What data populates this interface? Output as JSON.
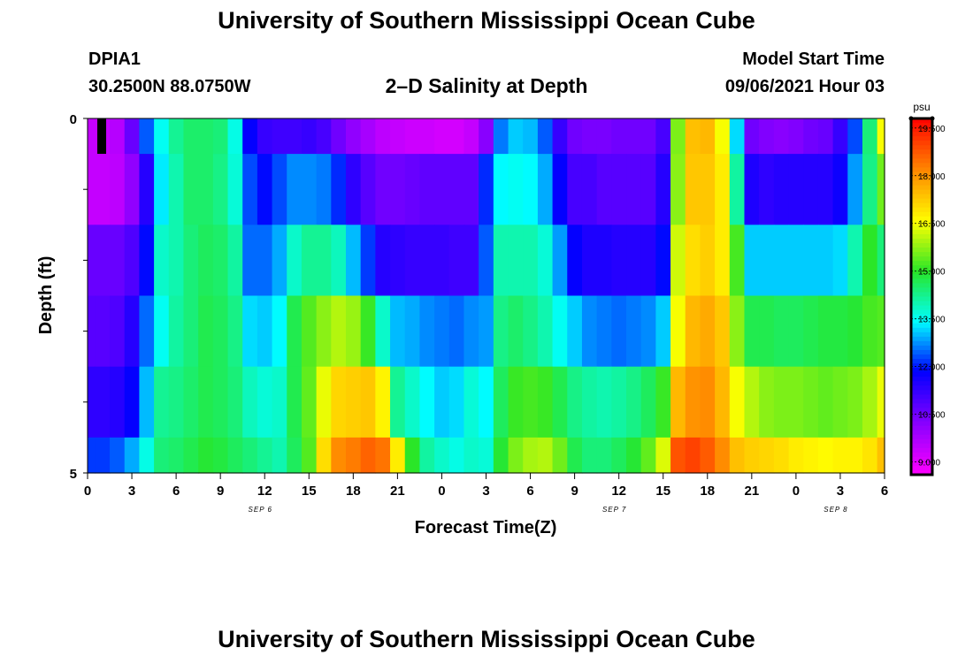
{
  "header": {
    "title": "University of Southern Mississippi Ocean Cube",
    "footer_title": "University of Southern Mississippi Ocean Cube",
    "station_id": "DPIA1",
    "location": "30.2500N  88.0750W",
    "start_label": "Model Start Time",
    "start_value": "09/06/2021 Hour 03"
  },
  "chart_data": {
    "type": "heatmap",
    "title": "2–D Salinity at Depth",
    "xlabel": "Forecast Time(Z)",
    "ylabel": "Depth (ft)",
    "x_ticks": [
      "0",
      "3",
      "6",
      "9",
      "12",
      "15",
      "18",
      "21",
      "0",
      "3",
      "6",
      "9",
      "12",
      "15",
      "18",
      "21",
      "0",
      "3",
      "6"
    ],
    "date_labels": [
      "SEP 6",
      "SEP 7",
      "SEP 8"
    ],
    "y_ticks": [
      "0",
      "5"
    ],
    "ylim": [
      0,
      5
    ],
    "colorbar": {
      "unit": "psu",
      "ticks": [
        "9.000",
        "10.500",
        "12.000",
        "13.500",
        "15.000",
        "16.500",
        "18.000",
        "19.500"
      ],
      "range": [
        8.6,
        19.8
      ]
    },
    "x_hours": [
      0,
      1,
      2,
      3,
      4,
      5,
      6,
      7,
      8,
      9,
      10,
      11,
      12,
      13,
      14,
      15,
      16,
      17,
      18,
      19,
      20,
      21,
      22,
      23,
      24,
      25,
      26,
      27,
      28,
      29,
      30,
      31,
      32,
      33,
      34,
      35,
      36,
      37,
      38,
      39,
      40,
      41,
      42,
      43,
      44,
      45,
      46,
      47,
      48,
      49,
      50,
      51,
      52,
      53,
      54
    ],
    "depth_rows": [
      {
        "depth_range": [
          0,
          0.5
        ],
        "values": [
          9.4,
          9.4,
          9.6,
          10.6,
          12.4,
          13.5,
          14.2,
          14.5,
          14.5,
          14.4,
          13.6,
          11.8,
          11.2,
          11.1,
          11.1,
          11.2,
          11.0,
          10.5,
          10.1,
          9.8,
          9.5,
          9.4,
          9.3,
          9.3,
          9.2,
          9.2,
          9.4,
          10.2,
          12.6,
          13.1,
          13.0,
          12.4,
          11.2,
          10.5,
          10.4,
          10.4,
          10.5,
          10.5,
          10.5,
          11.0,
          15.6,
          17.4,
          17.5,
          16.5,
          13.2,
          10.5,
          10.3,
          10.2,
          10.3,
          10.5,
          10.6,
          11.2,
          12.3,
          14.4,
          16.5
        ]
      },
      {
        "depth_range": [
          0.5,
          1.5
        ],
        "values": [
          9.4,
          9.4,
          9.5,
          10.1,
          11.4,
          13.3,
          14.0,
          14.5,
          14.5,
          14.3,
          13.7,
          12.3,
          11.9,
          12.3,
          12.7,
          12.7,
          12.6,
          12.1,
          11.3,
          10.8,
          10.5,
          10.5,
          10.6,
          10.7,
          10.7,
          10.7,
          10.7,
          12.1,
          13.4,
          13.5,
          13.4,
          12.9,
          11.8,
          11.0,
          11.0,
          10.8,
          10.8,
          10.8,
          10.8,
          11.4,
          15.7,
          17.3,
          17.3,
          16.8,
          14.1,
          11.5,
          11.3,
          11.4,
          11.4,
          11.4,
          11.4,
          11.7,
          12.8,
          14.3,
          15.5
        ]
      },
      {
        "depth_range": [
          1.5,
          2.5
        ],
        "values": [
          10.6,
          10.6,
          10.6,
          10.9,
          11.9,
          13.8,
          14.0,
          14.4,
          14.6,
          14.5,
          14.1,
          12.5,
          12.5,
          12.9,
          13.8,
          14.2,
          14.2,
          13.9,
          13.0,
          12.2,
          11.4,
          11.3,
          11.2,
          11.2,
          11.2,
          11.1,
          11.1,
          12.4,
          14.0,
          14.0,
          14.0,
          13.7,
          12.8,
          11.8,
          11.5,
          11.5,
          11.4,
          11.4,
          11.4,
          11.9,
          16.2,
          17.0,
          17.2,
          16.8,
          15.2,
          13.1,
          13.1,
          13.1,
          13.1,
          13.1,
          13.1,
          13.2,
          14.0,
          15.0,
          14.4
        ]
      },
      {
        "depth_range": [
          2.5,
          3.5
        ],
        "values": [
          10.8,
          10.8,
          10.9,
          11.4,
          12.5,
          13.5,
          14.1,
          14.4,
          14.7,
          14.6,
          14.3,
          13.2,
          13.1,
          13.4,
          14.7,
          15.3,
          15.7,
          16.0,
          15.8,
          15.1,
          13.8,
          13.0,
          12.9,
          12.7,
          12.6,
          12.5,
          12.7,
          12.8,
          14.3,
          14.5,
          14.3,
          14.0,
          13.5,
          13.1,
          12.7,
          12.6,
          12.5,
          12.6,
          12.7,
          13.1,
          16.5,
          17.5,
          17.7,
          17.3,
          15.7,
          14.7,
          14.7,
          14.6,
          14.6,
          14.7,
          14.8,
          14.8,
          14.9,
          15.2,
          15.3
        ]
      },
      {
        "depth_range": [
          3.5,
          4.5
        ],
        "values": [
          11.3,
          11.3,
          11.4,
          11.8,
          13.0,
          14.2,
          14.3,
          14.5,
          14.7,
          14.6,
          14.4,
          13.9,
          13.7,
          13.8,
          14.7,
          15.4,
          16.4,
          17.1,
          17.2,
          17.3,
          16.7,
          14.2,
          13.8,
          13.4,
          13.1,
          13.2,
          13.7,
          13.4,
          14.6,
          15.1,
          15.2,
          15.1,
          14.7,
          14.3,
          14.1,
          14.0,
          14.1,
          14.3,
          14.6,
          15.1,
          17.5,
          18.0,
          18.1,
          17.5,
          16.5,
          16.0,
          15.7,
          15.6,
          15.6,
          15.5,
          15.4,
          15.5,
          15.6,
          15.9,
          16.4
        ]
      },
      {
        "depth_range": [
          4.5,
          5
        ],
        "values": [
          12.2,
          12.2,
          12.4,
          12.9,
          13.6,
          14.4,
          14.5,
          14.7,
          14.9,
          14.8,
          14.6,
          14.4,
          14.2,
          14.0,
          14.6,
          15.3,
          17.0,
          18.1,
          18.3,
          18.6,
          18.4,
          16.8,
          15.0,
          14.1,
          13.8,
          13.6,
          13.8,
          13.7,
          14.9,
          15.6,
          15.9,
          16.0,
          15.5,
          14.7,
          14.4,
          14.4,
          14.6,
          14.9,
          15.4,
          16.3,
          18.8,
          19.0,
          18.7,
          18.1,
          17.4,
          17.2,
          17.1,
          17.0,
          16.8,
          16.7,
          16.6,
          16.7,
          16.7,
          16.9,
          17.4
        ]
      }
    ]
  }
}
